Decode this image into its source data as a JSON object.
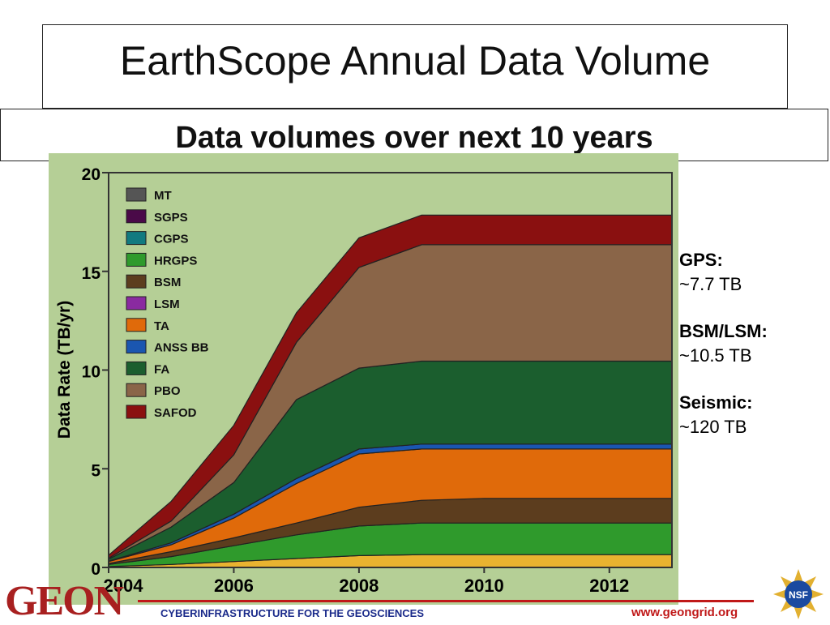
{
  "title": "EarthScope Annual Data Volume",
  "subtitle": "Data volumes over next 10 years",
  "annotations": [
    {
      "label": "GPS:",
      "value": "~7.7 TB"
    },
    {
      "label": "BSM/LSM:",
      "value": "~10.5 TB"
    },
    {
      "label": "Seismic:",
      "value": "~120 TB"
    }
  ],
  "footer": {
    "tagline": "CYBERINFRASTRUCTURE FOR THE GEOSCIENCES",
    "url": "www.geongrid.org",
    "logo_text": "GEON",
    "nsf_text": "NSF"
  },
  "colors": {
    "panel_bg": "#b5cf96",
    "accent_red": "#c01818"
  },
  "chart_data": {
    "type": "area",
    "stacked": true,
    "title": "",
    "xlabel": "",
    "ylabel": "Data Rate (TB/yr)",
    "x": [
      2004,
      2005,
      2006,
      2007,
      2008,
      2009,
      2010,
      2011,
      2012,
      2013
    ],
    "xticks": [
      "2004",
      "2006",
      "2008",
      "2010",
      "2012"
    ],
    "yticks": [
      "0",
      "5",
      "10",
      "15",
      "20"
    ],
    "xlim": [
      2004,
      2013
    ],
    "ylim": [
      0,
      20
    ],
    "legend_position": "top-left",
    "legend_order": [
      "MT",
      "SGPS",
      "CGPS",
      "HRGPS",
      "BSM",
      "LSM",
      "TA",
      "ANSS BB",
      "FA",
      "PBO",
      "SAFOD"
    ],
    "series": [
      {
        "name": "",
        "color": "#e9b330",
        "values": [
          0.05,
          0.15,
          0.3,
          0.45,
          0.6,
          0.65,
          0.65,
          0.65,
          0.65,
          0.65
        ]
      },
      {
        "name": "HRGPS",
        "color": "#2f9a2c",
        "values": [
          0.1,
          0.4,
          0.8,
          1.2,
          1.5,
          1.6,
          1.6,
          1.6,
          1.6,
          1.6
        ]
      },
      {
        "name": "BSM",
        "color": "#5c3d1e",
        "values": [
          0.05,
          0.25,
          0.4,
          0.6,
          0.95,
          1.15,
          1.25,
          1.25,
          1.25,
          1.25
        ]
      },
      {
        "name": "TA",
        "color": "#e06a0a",
        "values": [
          0.1,
          0.35,
          1.0,
          2.0,
          2.7,
          2.6,
          2.5,
          2.5,
          2.5,
          2.5
        ]
      },
      {
        "name": "ANSS BB",
        "color": "#1a56b0",
        "values": [
          0.02,
          0.1,
          0.2,
          0.25,
          0.25,
          0.25,
          0.25,
          0.25,
          0.25,
          0.25
        ]
      },
      {
        "name": "FA",
        "color": "#1b5e2e",
        "values": [
          0.1,
          0.8,
          1.6,
          4.0,
          4.1,
          4.2,
          4.2,
          4.2,
          4.2,
          4.2
        ]
      },
      {
        "name": "PBO",
        "color": "#8a6548",
        "values": [
          0.05,
          0.3,
          1.4,
          2.9,
          5.1,
          5.9,
          5.9,
          5.9,
          5.9,
          5.9
        ]
      },
      {
        "name": "SAFOD",
        "color": "#8a1010",
        "values": [
          0.15,
          1.0,
          1.5,
          1.5,
          1.5,
          1.5,
          1.5,
          1.5,
          1.5,
          1.5
        ]
      }
    ],
    "legend": [
      {
        "name": "MT",
        "color": "#555555"
      },
      {
        "name": "SGPS",
        "color": "#4a0a48"
      },
      {
        "name": "CGPS",
        "color": "#117a80"
      },
      {
        "name": "HRGPS",
        "color": "#2f9a2c"
      },
      {
        "name": "BSM",
        "color": "#5c3d1e"
      },
      {
        "name": "LSM",
        "color": "#8a2aa0"
      },
      {
        "name": "TA",
        "color": "#e06a0a"
      },
      {
        "name": "ANSS BB",
        "color": "#1a56b0"
      },
      {
        "name": "FA",
        "color": "#1b5e2e"
      },
      {
        "name": "PBO",
        "color": "#8a6548"
      },
      {
        "name": "SAFOD",
        "color": "#8a1010"
      }
    ]
  }
}
